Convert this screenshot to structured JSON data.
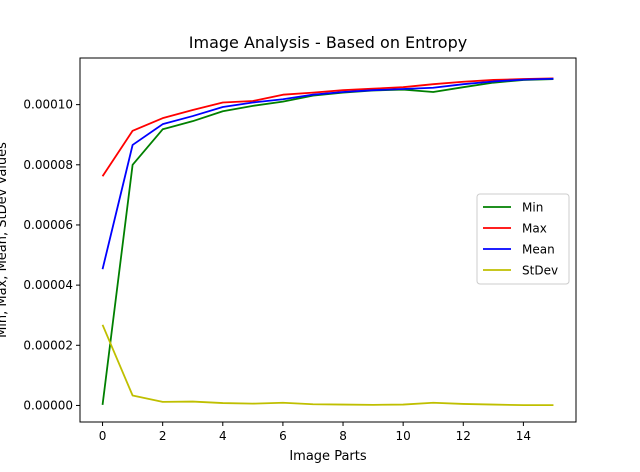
{
  "chart_data": {
    "type": "line",
    "title": "Image Analysis - Based on Entropy",
    "xlabel": "Image Parts",
    "ylabel": "Min, Max, Mean, StDev Values",
    "x": [
      0,
      1,
      2,
      3,
      4,
      5,
      6,
      7,
      8,
      9,
      10,
      11,
      12,
      13,
      14,
      15
    ],
    "xlim": [
      -0.75,
      15.75
    ],
    "ylim": [
      -5.5e-06,
      0.0001155
    ],
    "xticks": [
      0,
      2,
      4,
      6,
      8,
      10,
      12,
      14
    ],
    "xtick_labels": [
      "0",
      "2",
      "4",
      "6",
      "8",
      "10",
      "12",
      "14"
    ],
    "yticks": [
      0,
      2e-05,
      4e-05,
      6e-05,
      8e-05,
      0.0001
    ],
    "ytick_labels": [
      "0.00000",
      "0.00002",
      "0.00004",
      "0.00006",
      "0.00008",
      "0.00010"
    ],
    "grid": false,
    "legend_position": "center-right",
    "series": [
      {
        "name": "Min",
        "color": "#008000",
        "values": [
          2e-07,
          8e-05,
          9.18e-05,
          9.45e-05,
          9.78e-05,
          9.96e-05,
          0.000101,
          0.000103,
          0.000104,
          0.0001047,
          0.000105,
          0.0001042,
          0.0001058,
          0.0001073,
          0.0001082,
          0.0001085
        ]
      },
      {
        "name": "Max",
        "color": "#ff0000",
        "values": [
          7.62e-05,
          9.13e-05,
          9.55e-05,
          9.82e-05,
          0.0001007,
          0.0001012,
          0.0001033,
          0.000104,
          0.0001048,
          0.0001053,
          0.0001058,
          0.0001068,
          0.0001076,
          0.0001082,
          0.0001085,
          0.0001087
        ]
      },
      {
        "name": "Mean",
        "color": "#0000ff",
        "values": [
          4.53e-05,
          8.66e-05,
          9.35e-05,
          9.62e-05,
          9.92e-05,
          0.0001007,
          0.0001018,
          0.0001033,
          0.0001042,
          0.0001048,
          0.0001052,
          0.0001056,
          0.0001068,
          0.0001077,
          0.0001083,
          0.0001086
        ]
      },
      {
        "name": "StDev",
        "color": "#bfbf00",
        "values": [
          2.68e-05,
          3.3e-06,
          1.2e-06,
          1.3e-06,
          8e-07,
          6e-07,
          9e-07,
          4e-07,
          3e-07,
          2e-07,
          3e-07,
          9e-07,
          5e-07,
          3e-07,
          1e-07,
          1e-07
        ]
      }
    ]
  }
}
